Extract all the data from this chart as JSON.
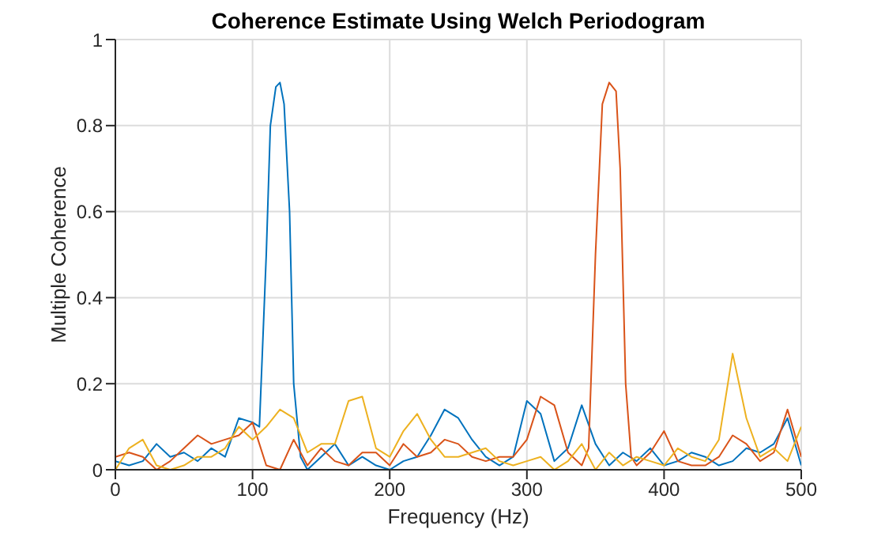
{
  "chart_data": {
    "type": "line",
    "title": "Coherence Estimate Using Welch Periodogram",
    "xlabel": "Frequency (Hz)",
    "ylabel": "Multiple Coherence",
    "xlim": [
      0,
      500
    ],
    "xticks": [
      0,
      100,
      200,
      300,
      400,
      500
    ],
    "ylim": [
      0,
      1
    ],
    "yticks": [
      0,
      0.2,
      0.4,
      0.6,
      0.8,
      1
    ],
    "grid": true,
    "line_style": "solid",
    "marker": "none",
    "series": [
      {
        "color": "#0072bd",
        "x": [
          0,
          10,
          20,
          30,
          40,
          50,
          60,
          70,
          80,
          90,
          100,
          105,
          110,
          113,
          117,
          120,
          123,
          127,
          130,
          135,
          140,
          150,
          160,
          170,
          180,
          190,
          200,
          210,
          220,
          230,
          240,
          250,
          260,
          270,
          280,
          290,
          300,
          310,
          320,
          330,
          340,
          350,
          360,
          370,
          380,
          390,
          400,
          410,
          420,
          430,
          440,
          450,
          460,
          470,
          480,
          490,
          500
        ],
        "values": [
          0.02,
          0.01,
          0.02,
          0.06,
          0.03,
          0.04,
          0.02,
          0.05,
          0.03,
          0.12,
          0.11,
          0.1,
          0.5,
          0.8,
          0.89,
          0.9,
          0.85,
          0.6,
          0.2,
          0.03,
          0.0,
          0.03,
          0.06,
          0.01,
          0.03,
          0.01,
          0.0,
          0.02,
          0.03,
          0.08,
          0.14,
          0.12,
          0.07,
          0.03,
          0.01,
          0.03,
          0.16,
          0.13,
          0.02,
          0.05,
          0.15,
          0.06,
          0.01,
          0.04,
          0.02,
          0.05,
          0.01,
          0.02,
          0.04,
          0.03,
          0.01,
          0.02,
          0.05,
          0.04,
          0.06,
          0.12,
          0.01
        ]
      },
      {
        "color": "#d95319",
        "x": [
          0,
          10,
          20,
          30,
          40,
          50,
          60,
          70,
          80,
          90,
          100,
          105,
          110,
          120,
          130,
          140,
          150,
          160,
          170,
          180,
          190,
          200,
          210,
          220,
          230,
          240,
          250,
          260,
          270,
          280,
          290,
          300,
          310,
          320,
          330,
          340,
          345,
          350,
          355,
          360,
          365,
          368,
          372,
          376,
          380,
          390,
          400,
          410,
          420,
          430,
          440,
          450,
          460,
          470,
          480,
          490,
          500
        ],
        "values": [
          0.03,
          0.04,
          0.03,
          0.0,
          0.02,
          0.05,
          0.08,
          0.06,
          0.07,
          0.08,
          0.11,
          0.06,
          0.01,
          0.0,
          0.07,
          0.01,
          0.05,
          0.02,
          0.01,
          0.04,
          0.04,
          0.01,
          0.06,
          0.03,
          0.04,
          0.07,
          0.06,
          0.03,
          0.02,
          0.03,
          0.03,
          0.07,
          0.17,
          0.15,
          0.04,
          0.01,
          0.05,
          0.5,
          0.85,
          0.9,
          0.88,
          0.7,
          0.2,
          0.03,
          0.01,
          0.04,
          0.09,
          0.02,
          0.01,
          0.01,
          0.03,
          0.08,
          0.06,
          0.02,
          0.04,
          0.14,
          0.03
        ]
      },
      {
        "color": "#edb120",
        "x": [
          0,
          10,
          20,
          30,
          40,
          50,
          60,
          70,
          80,
          90,
          100,
          110,
          120,
          130,
          140,
          150,
          160,
          170,
          180,
          190,
          200,
          210,
          220,
          230,
          240,
          250,
          260,
          270,
          280,
          290,
          300,
          310,
          320,
          330,
          340,
          350,
          360,
          370,
          380,
          390,
          400,
          410,
          420,
          430,
          440,
          450,
          460,
          470,
          480,
          490,
          500
        ],
        "values": [
          0.0,
          0.05,
          0.07,
          0.01,
          0.0,
          0.01,
          0.03,
          0.03,
          0.05,
          0.1,
          0.07,
          0.1,
          0.14,
          0.12,
          0.04,
          0.06,
          0.06,
          0.16,
          0.17,
          0.05,
          0.03,
          0.09,
          0.13,
          0.07,
          0.03,
          0.03,
          0.04,
          0.05,
          0.02,
          0.01,
          0.02,
          0.03,
          0.0,
          0.02,
          0.06,
          0.0,
          0.04,
          0.01,
          0.03,
          0.02,
          0.01,
          0.05,
          0.03,
          0.02,
          0.07,
          0.27,
          0.12,
          0.03,
          0.05,
          0.02,
          0.1
        ]
      }
    ]
  }
}
